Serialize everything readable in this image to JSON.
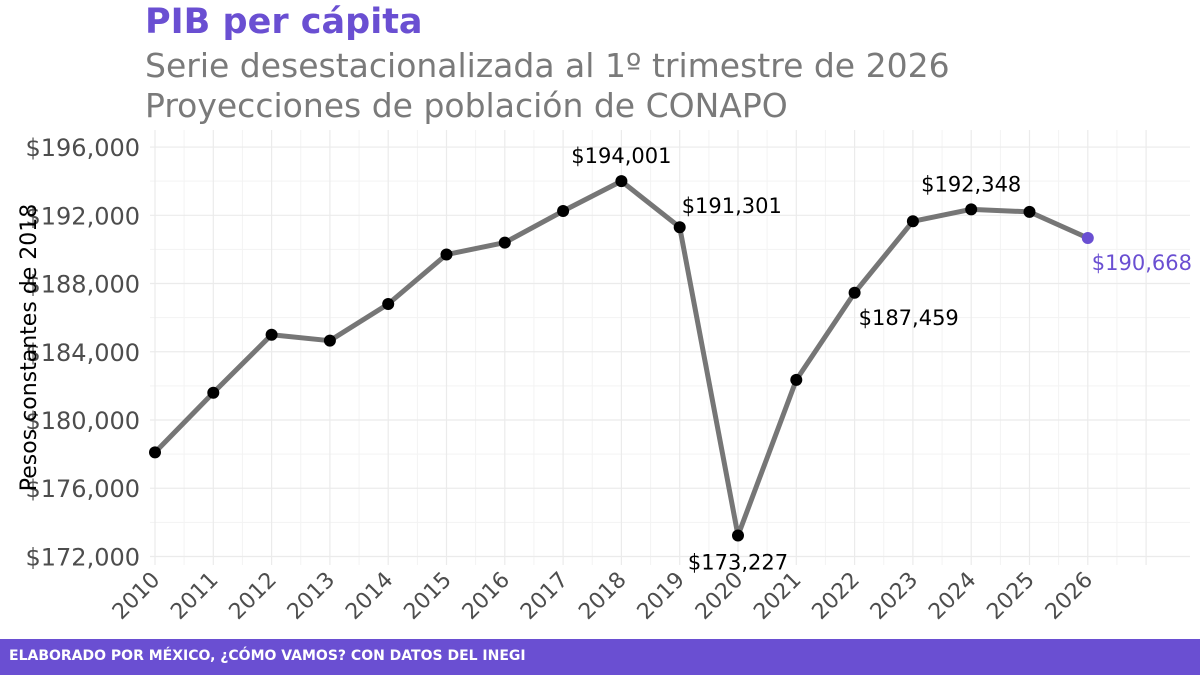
{
  "header": {
    "title": "PIB per cápita",
    "subtitle_line1": "Serie desestacionalizada al 1º trimestre de 2026",
    "subtitle_line2": "Proyecciones de población de CONAPO"
  },
  "footer": {
    "text": "ELABORADO POR MÉXICO, ¿CÓMO VAMOS? CON DATOS DEL INEGI"
  },
  "colors": {
    "accent": "#6A4FD2",
    "line": "#767676",
    "point": "#000000",
    "grid": "#ebebeb"
  },
  "chart_data": {
    "type": "line",
    "title": "PIB per cápita",
    "ylabel": "Pesos constantes de 2018",
    "xlabel": "",
    "grid": true,
    "ylim": [
      171500,
      197000
    ],
    "yticks": [
      172000,
      176000,
      180000,
      184000,
      188000,
      192000,
      196000
    ],
    "ytick_labels": [
      "$172,000",
      "$176,000",
      "$180,000",
      "$184,000",
      "$188,000",
      "$192,000",
      "$196,000"
    ],
    "x": [
      "2010",
      "2011",
      "2012",
      "2013",
      "2014",
      "2015",
      "2016",
      "2017",
      "2018",
      "2019",
      "2020",
      "2021",
      "2022",
      "2023",
      "2024",
      "2025",
      "2026"
    ],
    "values": [
      178100,
      181600,
      185000,
      184650,
      186800,
      189700,
      190400,
      192250,
      194001,
      191301,
      173227,
      182350,
      187459,
      191650,
      192348,
      192200,
      190668
    ],
    "highlight_last": true,
    "annotations": [
      {
        "x": "2018",
        "label": "$194,001",
        "position": "above"
      },
      {
        "x": "2019",
        "label": "$191,301",
        "position": "above-right"
      },
      {
        "x": "2020",
        "label": "$173,227",
        "position": "below"
      },
      {
        "x": "2022",
        "label": "$187,459",
        "position": "below-right"
      },
      {
        "x": "2024",
        "label": "$192,348",
        "position": "above"
      },
      {
        "x": "2026",
        "label": "$190,668",
        "position": "below-right"
      }
    ]
  }
}
